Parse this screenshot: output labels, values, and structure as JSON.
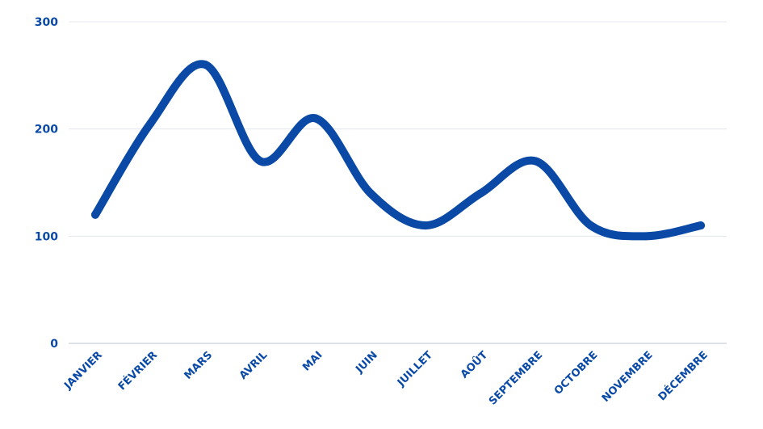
{
  "chart_data": {
    "type": "line",
    "categories": [
      "JANVIER",
      "FÉVRIER",
      "MARS",
      "AVRIL",
      "MAI",
      "JUIN",
      "JUILLET",
      "AOÛT",
      "SEPTEMBRE",
      "OCTOBRE",
      "NOVEMBRE",
      "DÉCEMBRE"
    ],
    "series": [
      {
        "values": [
          120,
          205,
          260,
          170,
          210,
          140,
          110,
          140,
          170,
          110,
          100,
          110
        ]
      }
    ],
    "ylim": [
      0,
      300
    ],
    "yticks": [
      0,
      100,
      200,
      300
    ],
    "grid": true,
    "legend": "none",
    "colors": {
      "line": "#0a4aa6",
      "label": "#0a4aa6",
      "grid": "#e3e7ee",
      "axis": "#c9d0db"
    }
  }
}
